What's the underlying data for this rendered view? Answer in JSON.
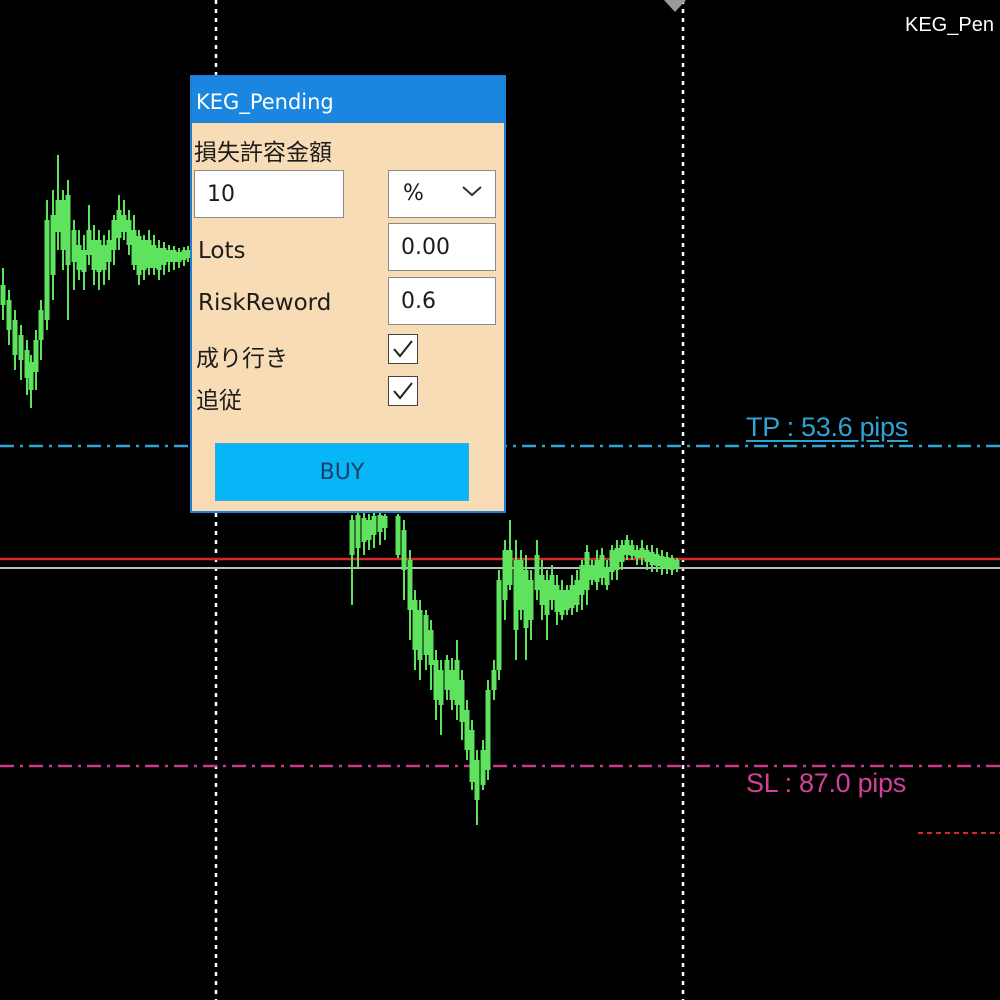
{
  "window": {
    "label": "KEG_Pen"
  },
  "panel": {
    "title": "KEG_Pending",
    "risk_amount_label": "損失許容金額",
    "risk_amount_value": "10",
    "risk_unit_selected": "%",
    "lots_label": "Lots",
    "lots_value": "0.00",
    "risk_reward_label": "RiskReword",
    "risk_reward_value": "0.6",
    "market_order_label": "成り行き",
    "market_order_checked": true,
    "trailing_label": "追従",
    "trailing_checked": true,
    "buy_label": "BUY"
  },
  "chart": {
    "tp_label": "TP : 53.6 pips",
    "sl_label": "SL : 87.0 pips",
    "colors": {
      "background": "#000000",
      "candle": "#5fe35f",
      "tp_line": "#2ea3d4",
      "sl_line": "#c53d86",
      "entry_line": "#d42a2a",
      "price_line": "#bdbdbd",
      "grid": "#ffffff",
      "sl_text": "#d2409a",
      "tp_text": "#2ea3d4"
    }
  }
}
